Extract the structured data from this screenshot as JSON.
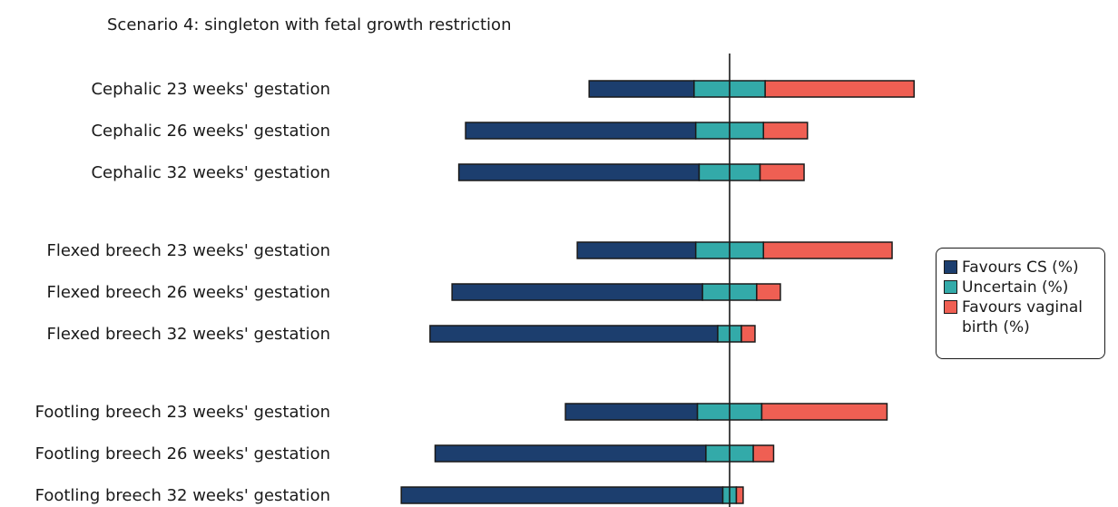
{
  "chart_data": {
    "type": "bar",
    "orientation": "horizontal",
    "stacked": true,
    "diverging": true,
    "title": "Scenario 4: singleton with fetal growth restriction",
    "categories": [
      "Cephalic 23 weeks' gestation",
      "Cephalic 26 weeks' gestation",
      "Cephalic 32 weeks' gestation",
      "Flexed breech 23 weeks' gestation",
      "Flexed breech 26 weeks' gestation",
      "Flexed breech 32 weeks' gestation",
      "Footling breech 23 weeks' gestation",
      "Footling breech 26 weeks' gestation",
      "Footling breech 32 weeks' gestation"
    ],
    "groups": [
      3,
      3,
      3
    ],
    "series": [
      {
        "name": "Favours CS (%)",
        "color": "#1c3e6e",
        "values": [
          31,
          68,
          71,
          35,
          74,
          85,
          39,
          80,
          95
        ]
      },
      {
        "name": "Uncertain (%)",
        "color": "#33aaa9",
        "values": [
          21,
          20,
          18,
          20,
          16,
          7,
          19,
          14,
          4
        ]
      },
      {
        "name": "Favours vaginal birth (%)",
        "color": "#ef5f53",
        "values": [
          44,
          13,
          13,
          38,
          7,
          4,
          37,
          6,
          2
        ]
      }
    ],
    "centering": "middle of Uncertain segment",
    "legend_position": "right",
    "grid": false
  }
}
